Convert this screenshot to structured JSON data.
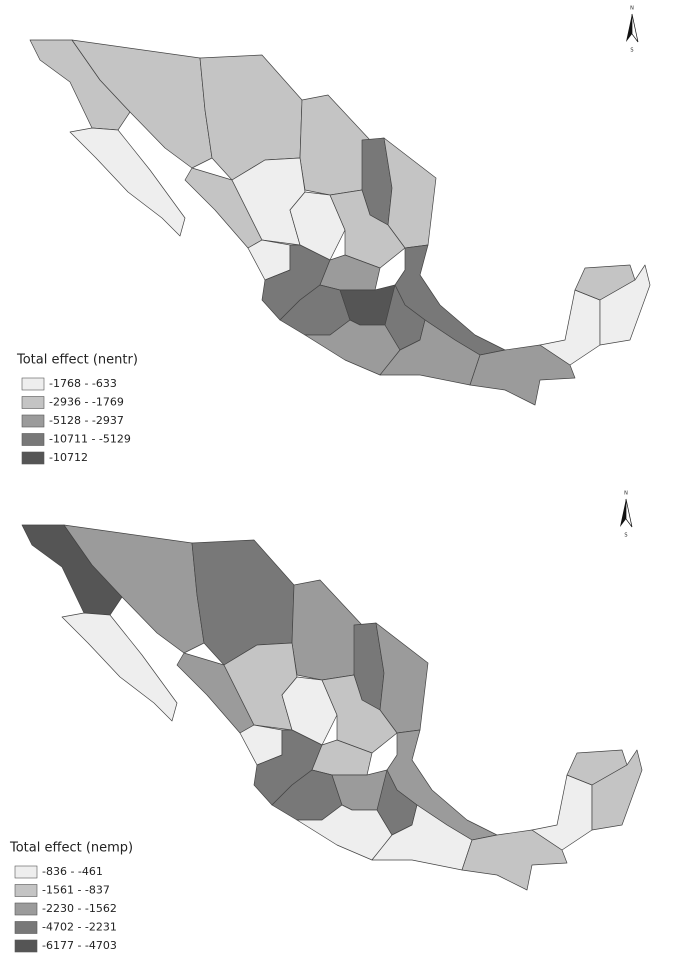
{
  "maps": [
    {
      "legend": {
        "title": "Total effect (nentr)",
        "items": [
          {
            "label": "-1768 - -633",
            "color": "#eeeeee"
          },
          {
            "label": "-2936 - -1769",
            "color": "#c4c4c4"
          },
          {
            "label": "-5128 - -2937",
            "color": "#9b9b9b"
          },
          {
            "label": "-10711 - -5129",
            "color": "#787878"
          },
          {
            "label": "-10712",
            "color": "#555555"
          }
        ]
      },
      "north_arrow": {
        "north": "N",
        "south": "S"
      }
    },
    {
      "legend": {
        "title": "Total effect (nemp)",
        "items": [
          {
            "label": "-836 - -461",
            "color": "#eeeeee"
          },
          {
            "label": "-1561 - -837",
            "color": "#c4c4c4"
          },
          {
            "label": "-2230 - -1562",
            "color": "#9b9b9b"
          },
          {
            "label": "-4702 - -2231",
            "color": "#787878"
          },
          {
            "label": "-6177 - -4703",
            "color": "#555555"
          }
        ]
      },
      "north_arrow": {
        "north": "N",
        "south": "S"
      }
    }
  ]
}
